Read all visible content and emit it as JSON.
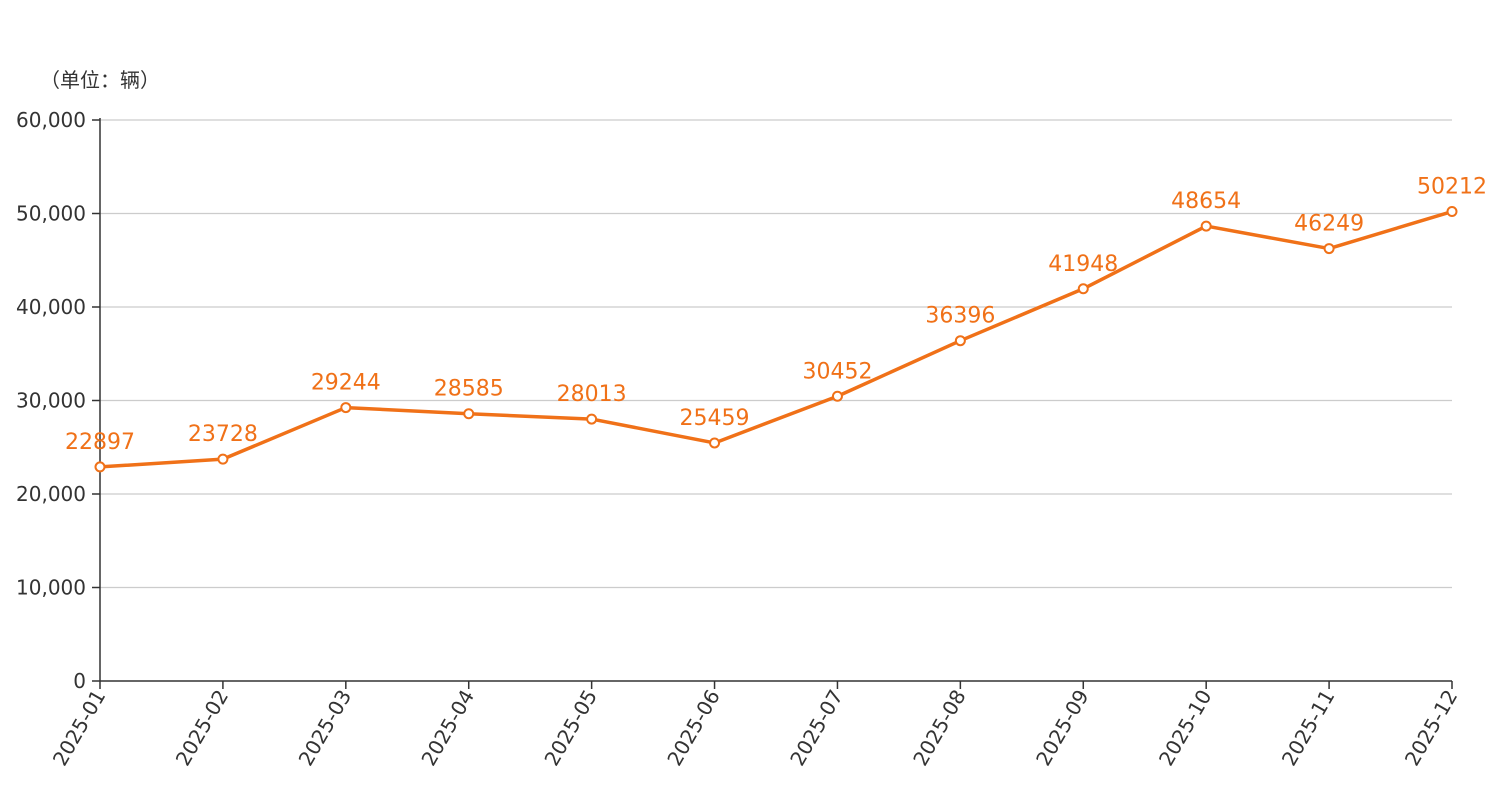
{
  "chart_data": {
    "type": "line",
    "unit_label": "（单位：辆）",
    "categories": [
      "2025-01",
      "2025-02",
      "2025-03",
      "2025-04",
      "2025-05",
      "2025-06",
      "2025-07",
      "2025-08",
      "2025-09",
      "2025-10",
      "2025-11",
      "2025-12"
    ],
    "series": [
      {
        "values": [
          22897,
          23728,
          29244,
          28585,
          28013,
          25459,
          30452,
          36396,
          41948,
          48654,
          46249,
          50212
        ],
        "color": "#f07118"
      }
    ],
    "ylim": [
      0,
      60000
    ],
    "yticks": [
      {
        "value": 0,
        "label": "0"
      },
      {
        "value": 10000,
        "label": "10,000"
      },
      {
        "value": 20000,
        "label": "20,000"
      },
      {
        "value": 30000,
        "label": "30,000"
      },
      {
        "value": 40000,
        "label": "40,000"
      },
      {
        "value": 50000,
        "label": "50,000"
      },
      {
        "value": 60000,
        "label": "60,000"
      }
    ],
    "grid": true,
    "legend": "none",
    "title": "",
    "xlabel": "",
    "ylabel": ""
  }
}
